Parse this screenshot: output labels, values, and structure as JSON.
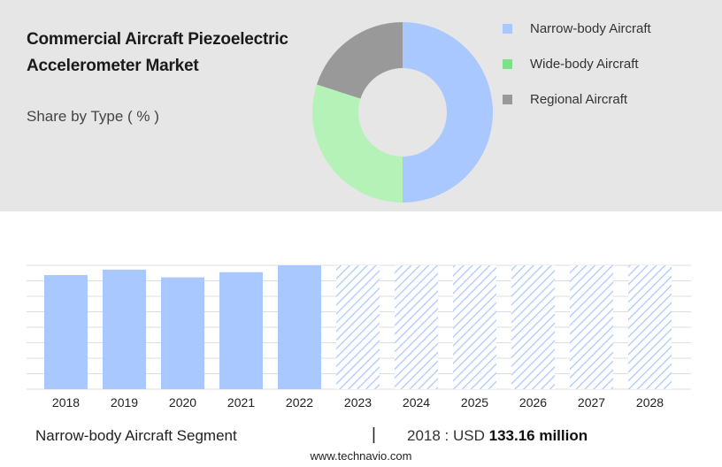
{
  "header": {
    "title": "Commercial Aircraft Piezoelectric Accelerometer Market",
    "subtitle": "Share by Type ( % )"
  },
  "legend": {
    "items": [
      {
        "label": "Narrow-body Aircraft",
        "color": "#a8c8ff"
      },
      {
        "label": "Wide-body Aircraft",
        "color": "#7ee08a"
      },
      {
        "label": "Regional Aircraft",
        "color": "#999999"
      }
    ]
  },
  "footer": {
    "segment": "Narrow-body Aircraft Segment",
    "separator": "|",
    "year_value_prefix": "2018 : USD",
    "year_value": "133.16 million",
    "website": "www.technavio.com"
  },
  "chart_data": [
    {
      "type": "pie",
      "style": "donut",
      "categories": [
        "Narrow-body Aircraft",
        "Wide-body Aircraft",
        "Regional Aircraft"
      ],
      "values": [
        50,
        30,
        20
      ],
      "colors": [
        "#a8c8ff",
        "#b5f2b8",
        "#999999"
      ]
    },
    {
      "type": "bar",
      "categories": [
        "2018",
        "2019",
        "2020",
        "2021",
        "2022",
        "2023",
        "2024",
        "2025",
        "2026",
        "2027",
        "2028"
      ],
      "values": [
        133.16,
        139.5,
        130.5,
        136.5,
        144.5,
        null,
        null,
        null,
        null,
        null,
        null
      ],
      "forecast_categories": [
        "2023",
        "2024",
        "2025",
        "2026",
        "2027",
        "2028"
      ],
      "bar_color": "#a8c8ff",
      "ylim": [
        0,
        144.5
      ],
      "grid": true
    }
  ]
}
